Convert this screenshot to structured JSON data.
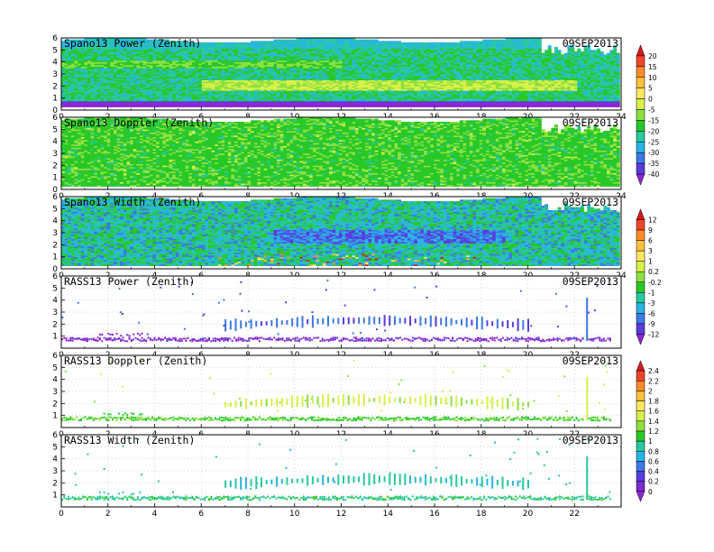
{
  "chart_data": [
    {
      "type": "heatmap",
      "title": "Spano13  Power  (Zenith)",
      "date": "09SEP2013",
      "xlim": [
        0,
        24
      ],
      "ylim": [
        0,
        6
      ],
      "xticks": [
        0,
        2,
        4,
        6,
        8,
        10,
        12,
        14,
        16,
        18,
        20,
        22,
        24
      ],
      "yticks": [
        0,
        1,
        2,
        3,
        4,
        5,
        6
      ],
      "colorbar_group": 0,
      "kind": "power"
    },
    {
      "type": "heatmap",
      "title": "Spano13  Doppler  (Zenith)",
      "date": "09SEP2013",
      "xlim": [
        0,
        24
      ],
      "ylim": [
        0,
        6
      ],
      "xticks": [
        0,
        2,
        4,
        6,
        8,
        10,
        12,
        14,
        16,
        18,
        20,
        22,
        24
      ],
      "yticks": [
        0,
        1,
        2,
        3,
        4,
        5,
        6
      ],
      "colorbar_group": 0,
      "kind": "doppler"
    },
    {
      "type": "heatmap",
      "title": "Spano13  Width  (Zenith)",
      "date": "09SEP2013",
      "xlim": [
        0,
        24
      ],
      "ylim": [
        0,
        6
      ],
      "xticks": [
        0,
        2,
        4,
        6,
        8,
        10,
        12,
        14,
        16,
        18,
        20,
        22,
        24
      ],
      "yticks": [
        0,
        1,
        2,
        3,
        4,
        5,
        6
      ],
      "colorbar_group": 1,
      "kind": "width"
    },
    {
      "type": "scatter",
      "title": "RASS13  Power  (Zenith)",
      "date": "09SEP2013",
      "xlim": [
        0,
        24
      ],
      "ylim": [
        0,
        6
      ],
      "xticks": [
        0,
        2,
        4,
        6,
        8,
        10,
        12,
        14,
        16,
        18,
        20,
        22
      ],
      "yticks": [
        1,
        2,
        3,
        4,
        5,
        6
      ],
      "colorbar_group": 1,
      "kind": "rass_power"
    },
    {
      "type": "scatter",
      "title": "RASS13  Doppler  (Zenith)",
      "date": "09SEP2013",
      "xlim": [
        0,
        24
      ],
      "ylim": [
        0,
        6
      ],
      "xticks": [
        0,
        2,
        4,
        6,
        8,
        10,
        12,
        14,
        16,
        18,
        20,
        22
      ],
      "yticks": [
        1,
        2,
        3,
        4,
        5,
        6
      ],
      "colorbar_group": 2,
      "kind": "rass_doppler"
    },
    {
      "type": "scatter",
      "title": "RASS13  Width  (Zenith)",
      "date": "09SEP2013",
      "xlim": [
        0,
        24
      ],
      "ylim": [
        0,
        6
      ],
      "xticks": [
        0,
        2,
        4,
        6,
        8,
        10,
        12,
        14,
        16,
        18,
        20,
        22
      ],
      "yticks": [
        1,
        2,
        3,
        4,
        5,
        6
      ],
      "colorbar_group": 2,
      "kind": "rass_width"
    }
  ],
  "colorbars": [
    {
      "labels": [
        "20",
        "15",
        "10",
        "5",
        "0",
        "-5",
        "-15",
        "-20",
        "-25",
        "-30",
        "-35",
        "-40"
      ],
      "colors": [
        "#d7191c",
        "#f0442e",
        "#ff8c28",
        "#ffc03c",
        "#ffe860",
        "#d8f04a",
        "#8ee040",
        "#28c828",
        "#28c8a0",
        "#28b4e6",
        "#3c78e6",
        "#5a3cdc",
        "#8c28d2"
      ]
    },
    {
      "labels": [
        "12",
        "9",
        "6",
        "3",
        "1",
        "0.2",
        "-0.2",
        "-1",
        "-3",
        "-6",
        "-9",
        "-12"
      ],
      "colors": [
        "#d7191c",
        "#f0442e",
        "#ff8c28",
        "#ffc03c",
        "#ffe860",
        "#d8f04a",
        "#8ee040",
        "#28c828",
        "#28c8a0",
        "#28b4e6",
        "#3c78e6",
        "#5a3cdc",
        "#8c28d2"
      ]
    },
    {
      "labels": [
        "2.4",
        "2.2",
        "2",
        "1.8",
        "1.6",
        "1.4",
        "1.2",
        "1",
        "0.8",
        "0.6",
        "0.4",
        "0.2",
        "0"
      ],
      "colors": [
        "#d7191c",
        "#f0442e",
        "#ff8c28",
        "#ffc03c",
        "#ffe860",
        "#d8f04a",
        "#8ee040",
        "#28c828",
        "#28c8a0",
        "#28b4e6",
        "#3c78e6",
        "#5a3cdc",
        "#7a2ccf",
        "#8c28d2"
      ]
    }
  ]
}
